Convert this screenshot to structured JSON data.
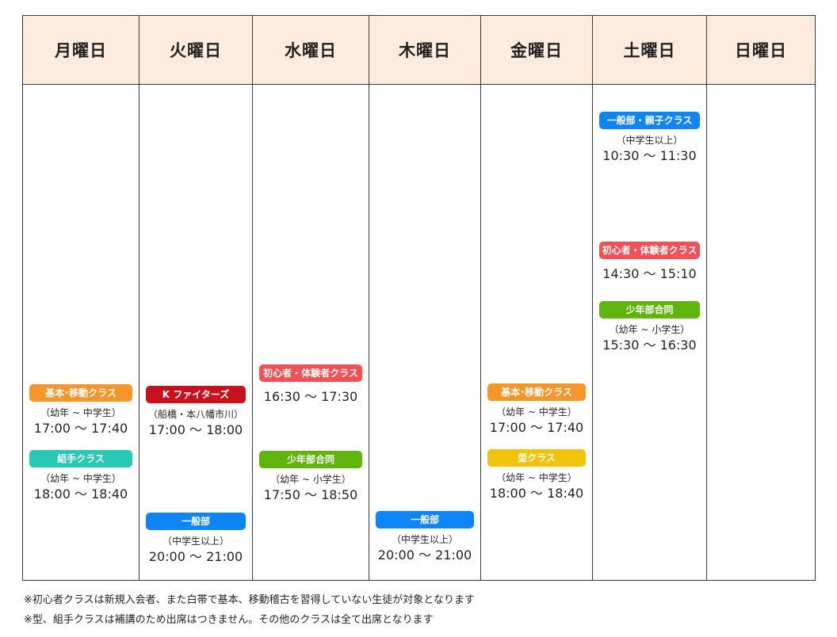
{
  "colors": {
    "header_bg": "#fdebdd",
    "orange": "#f5952a",
    "teal": "#27c9b5",
    "crimson": "#c9101e",
    "blue": "#0e85f7",
    "red": "#f25055",
    "green": "#5fb50b",
    "yellow": "#f2c409"
  },
  "days": [
    {
      "name": "月曜日",
      "classes": [
        {
          "label": "基本･移動クラス",
          "color": "orange",
          "note": "（幼年 ~ 中学生）",
          "time": "17:00 〜 17:40"
        },
        {
          "label": "組手クラス",
          "color": "teal",
          "note": "（幼年 ~ 中学生）",
          "time": "18:00 〜 18:40"
        }
      ]
    },
    {
      "name": "火曜日",
      "classes": [
        {
          "label": "K ファイターズ",
          "color": "crimson",
          "note": "（船橋・本八幡市川）",
          "time": "17:00 〜 18:00"
        },
        {
          "label": "一般部",
          "color": "blue",
          "note": "（中学生以上）",
          "time": "20:00 〜 21:00"
        }
      ]
    },
    {
      "name": "水曜日",
      "classes": [
        {
          "label": "初心者・体験者クラス",
          "color": "red",
          "note": "",
          "time": "16:30 〜 17:30"
        },
        {
          "label": "少年部合同",
          "color": "green",
          "note": "（幼年 ~ 小学生）",
          "time": "17:50 〜 18:50"
        }
      ]
    },
    {
      "name": "木曜日",
      "classes": [
        {
          "label": "一般部",
          "color": "blue",
          "note": "（中学生以上）",
          "time": "20:00 〜 21:00"
        }
      ]
    },
    {
      "name": "金曜日",
      "classes": [
        {
          "label": "基本･移動クラス",
          "color": "orange",
          "note": "（幼年 ~ 中学生）",
          "time": "17:00 〜 17:40"
        },
        {
          "label": "型クラス",
          "color": "yellow",
          "note": "（幼年 ~ 中学生）",
          "time": "18:00 〜 18:40"
        }
      ]
    },
    {
      "name": "土曜日",
      "classes": [
        {
          "label": "一般部・親子クラス",
          "color": "blue",
          "note": "（中学生以上）",
          "time": "10:30 〜 11:30"
        },
        {
          "label": "初心者・体験者クラス",
          "color": "red",
          "note": "",
          "time": "14:30 〜 15:10"
        },
        {
          "label": "少年部合同",
          "color": "green",
          "note": "（幼年 ~ 小学生）",
          "time": "15:30 〜 16:30"
        }
      ]
    },
    {
      "name": "日曜日",
      "classes": []
    }
  ],
  "footnotes": [
    "※初心者クラスは新規入会者、また白帯で基本、移動稽古を習得していない生徒が対象となります",
    "※型、組手クラスは補講のため出席はつきません。その他のクラスは全て出席となります"
  ]
}
